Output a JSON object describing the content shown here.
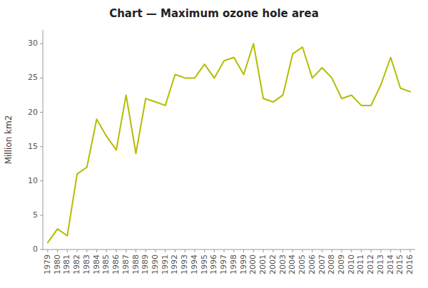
{
  "chart_data": {
    "type": "line",
    "title": "Chart — Maximum ozone hole area",
    "ylabel": "Million km2",
    "x": [
      1979,
      1980,
      1981,
      1982,
      1983,
      1984,
      1985,
      1986,
      1987,
      1988,
      1989,
      1990,
      1991,
      1992,
      1993,
      1994,
      1995,
      1996,
      1997,
      1998,
      1999,
      2000,
      2001,
      2002,
      2003,
      2004,
      2005,
      2006,
      2007,
      2008,
      2009,
      2010,
      2011,
      2012,
      2013,
      2014,
      2015,
      2016
    ],
    "values": [
      1.0,
      3.0,
      2.0,
      11.0,
      12.0,
      19.0,
      16.5,
      14.5,
      22.5,
      14.0,
      22.0,
      21.5,
      21.0,
      25.5,
      25.0,
      25.0,
      27.0,
      25.0,
      27.5,
      28.0,
      25.5,
      30.0,
      22.0,
      21.5,
      22.5,
      28.5,
      29.5,
      25.0,
      26.5,
      25.0,
      22.0,
      22.5,
      21.0,
      21.0,
      24.0,
      28.0,
      23.5,
      23.0
    ],
    "color": "#b5bd00",
    "xlim": [
      1978.5,
      2016.5
    ],
    "xticks": [
      1979,
      1980,
      1981,
      1982,
      1983,
      1984,
      1985,
      1986,
      1987,
      1988,
      1989,
      1990,
      1991,
      1992,
      1993,
      1994,
      1995,
      1996,
      1997,
      1998,
      1999,
      2000,
      2001,
      2002,
      2003,
      2004,
      2005,
      2006,
      2007,
      2008,
      2009,
      2010,
      2011,
      2012,
      2013,
      2014,
      2015,
      2016
    ],
    "ylim": [
      0,
      32
    ],
    "yticks": [
      0,
      5,
      10,
      15,
      20,
      25,
      30
    ],
    "grid": false
  }
}
